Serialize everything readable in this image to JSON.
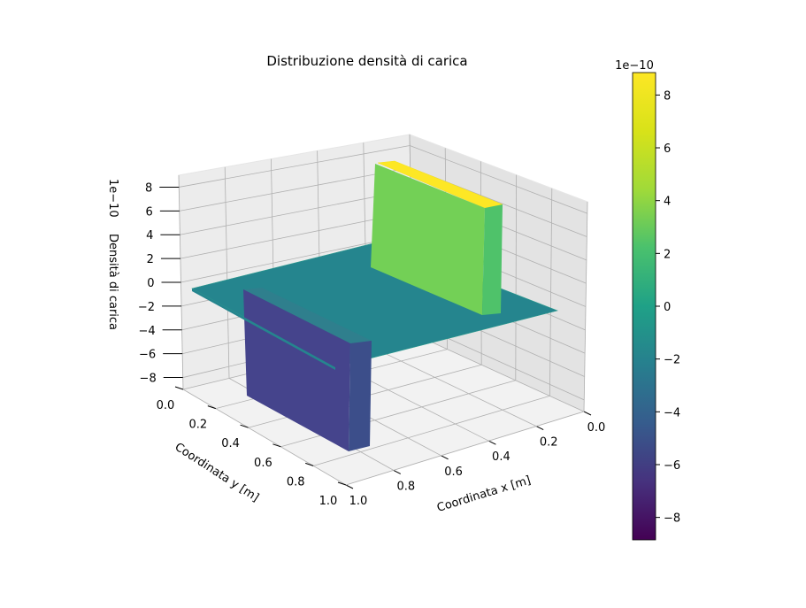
{
  "chart_data": {
    "type": "surface3d",
    "title": "Distribuzione densità di carica",
    "xlabel": "Coordinata x [m]",
    "ylabel": "Coordinata y [m]",
    "zlabel": "Densità di carica",
    "xlim": [
      0,
      1
    ],
    "ylim": [
      0,
      1
    ],
    "zlim": [
      -9e-10,
      9e-10
    ],
    "x_ticks": [
      "0.0",
      "0.2",
      "0.4",
      "0.6",
      "0.8",
      "1.0"
    ],
    "y_ticks": [
      "0.0",
      "0.2",
      "0.4",
      "0.6",
      "0.8",
      "1.0"
    ],
    "z_ticks": [
      "−8",
      "−6",
      "−4",
      "−2",
      "0",
      "2",
      "4",
      "6",
      "8"
    ],
    "z_offset_label": "1e−10",
    "grid": true,
    "colormap": "viridis",
    "surface": {
      "baseline_value": 0,
      "regions": [
        {
          "x_range": [
            0.2,
            0.25
          ],
          "y_range": [
            0.35,
            0.75
          ],
          "value": 8.85e-10
        },
        {
          "x_range": [
            0.75,
            0.8
          ],
          "y_range": [
            0.35,
            0.75
          ],
          "value": -8.85e-10
        }
      ]
    },
    "colorbar": {
      "range": [
        -8.85e-10,
        8.85e-10
      ],
      "ticks": [
        "−8",
        "−6",
        "−4",
        "−2",
        "0",
        "2",
        "4",
        "6",
        "8"
      ],
      "offset_label": "1e−10"
    }
  }
}
